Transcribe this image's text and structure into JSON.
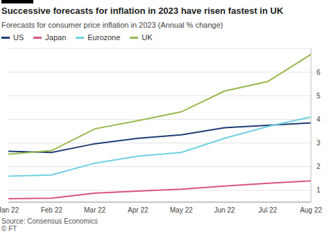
{
  "chart_data": {
    "type": "line",
    "title": "Successive forecasts for inflation in 2023 have risen fastest in UK",
    "subtitle": "Forecasts for consumer price inflation in 2023 (Annual % change)",
    "categories": [
      "Jan 22",
      "Feb 22",
      "Mar 22",
      "Apr 22",
      "May 22",
      "Jun 22",
      "Jul 22",
      "Aug 22"
    ],
    "series": [
      {
        "name": "US",
        "color": "#1f3d73",
        "values": [
          2.65,
          2.6,
          2.97,
          3.2,
          3.35,
          3.65,
          3.75,
          3.85
        ]
      },
      {
        "name": "Japan",
        "color": "#d8547f",
        "values": [
          0.65,
          0.67,
          0.88,
          0.97,
          1.05,
          1.18,
          1.3,
          1.4
        ]
      },
      {
        "name": "Eurozone",
        "color": "#6fd0e2",
        "values": [
          1.6,
          1.65,
          2.15,
          2.45,
          2.6,
          3.2,
          3.7,
          4.1
        ]
      },
      {
        "name": "UK",
        "color": "#97b84b",
        "values": [
          2.53,
          2.68,
          3.6,
          3.95,
          4.32,
          5.2,
          5.6,
          6.75
        ]
      }
    ],
    "ylim": [
      0.5,
      7
    ],
    "yticks": [
      1,
      2,
      3,
      4,
      5,
      6
    ],
    "grid": true,
    "legend": "top",
    "source": "Source: Consensus Economics",
    "credit": "© FT"
  }
}
